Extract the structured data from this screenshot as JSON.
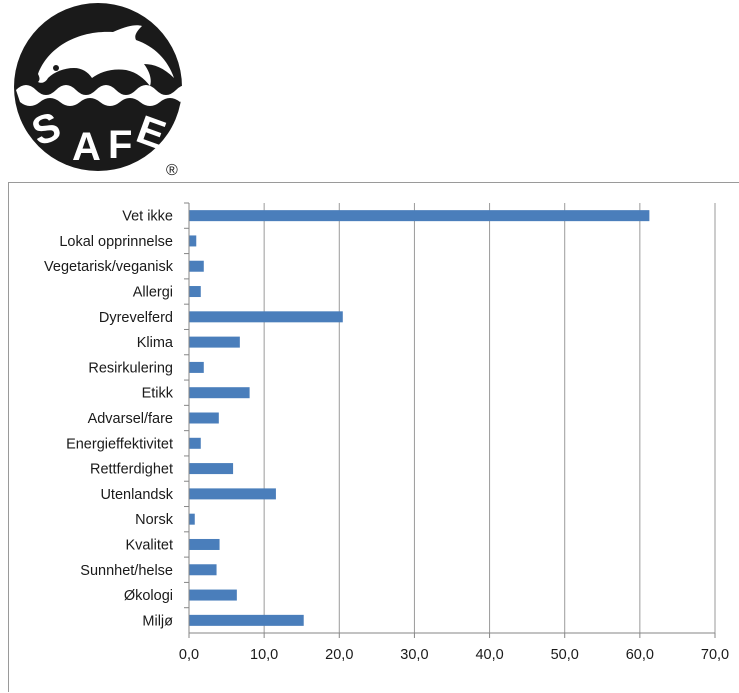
{
  "logo": {
    "text": "SAFE",
    "registered_mark": "®",
    "color": "#1a1a1a"
  },
  "colors": {
    "bar": "#4a7ebb",
    "grid": "#9a9a9a",
    "axis": "#868686"
  },
  "chart_data": {
    "type": "bar",
    "orientation": "horizontal",
    "categories": [
      "Vet ikke",
      "Lokal opprinnelse",
      "Vegetarisk/veganisk",
      "Allergi",
      "Dyrevelferd",
      "Klima",
      "Resirkulering",
      "Etikk",
      "Advarsel/fare",
      "Energieffektivitet",
      "Rettferdighet",
      "Utenlandsk",
      "Norsk",
      "Kvalitet",
      "Sunnhet/helse",
      "Økologi",
      "Miljø"
    ],
    "values": [
      61.2,
      0.9,
      1.9,
      1.5,
      20.4,
      6.7,
      1.9,
      8.0,
      3.9,
      1.5,
      5.8,
      11.5,
      0.7,
      4.0,
      3.6,
      6.3,
      15.2
    ],
    "xlim": [
      0,
      70
    ],
    "ticks": [
      0,
      10,
      20,
      30,
      40,
      50,
      60,
      70
    ],
    "tick_labels": [
      "0,0",
      "10,0",
      "20,0",
      "30,0",
      "40,0",
      "50,0",
      "60,0",
      "70,0"
    ],
    "grid": true,
    "title": "",
    "xlabel": "",
    "ylabel": ""
  }
}
